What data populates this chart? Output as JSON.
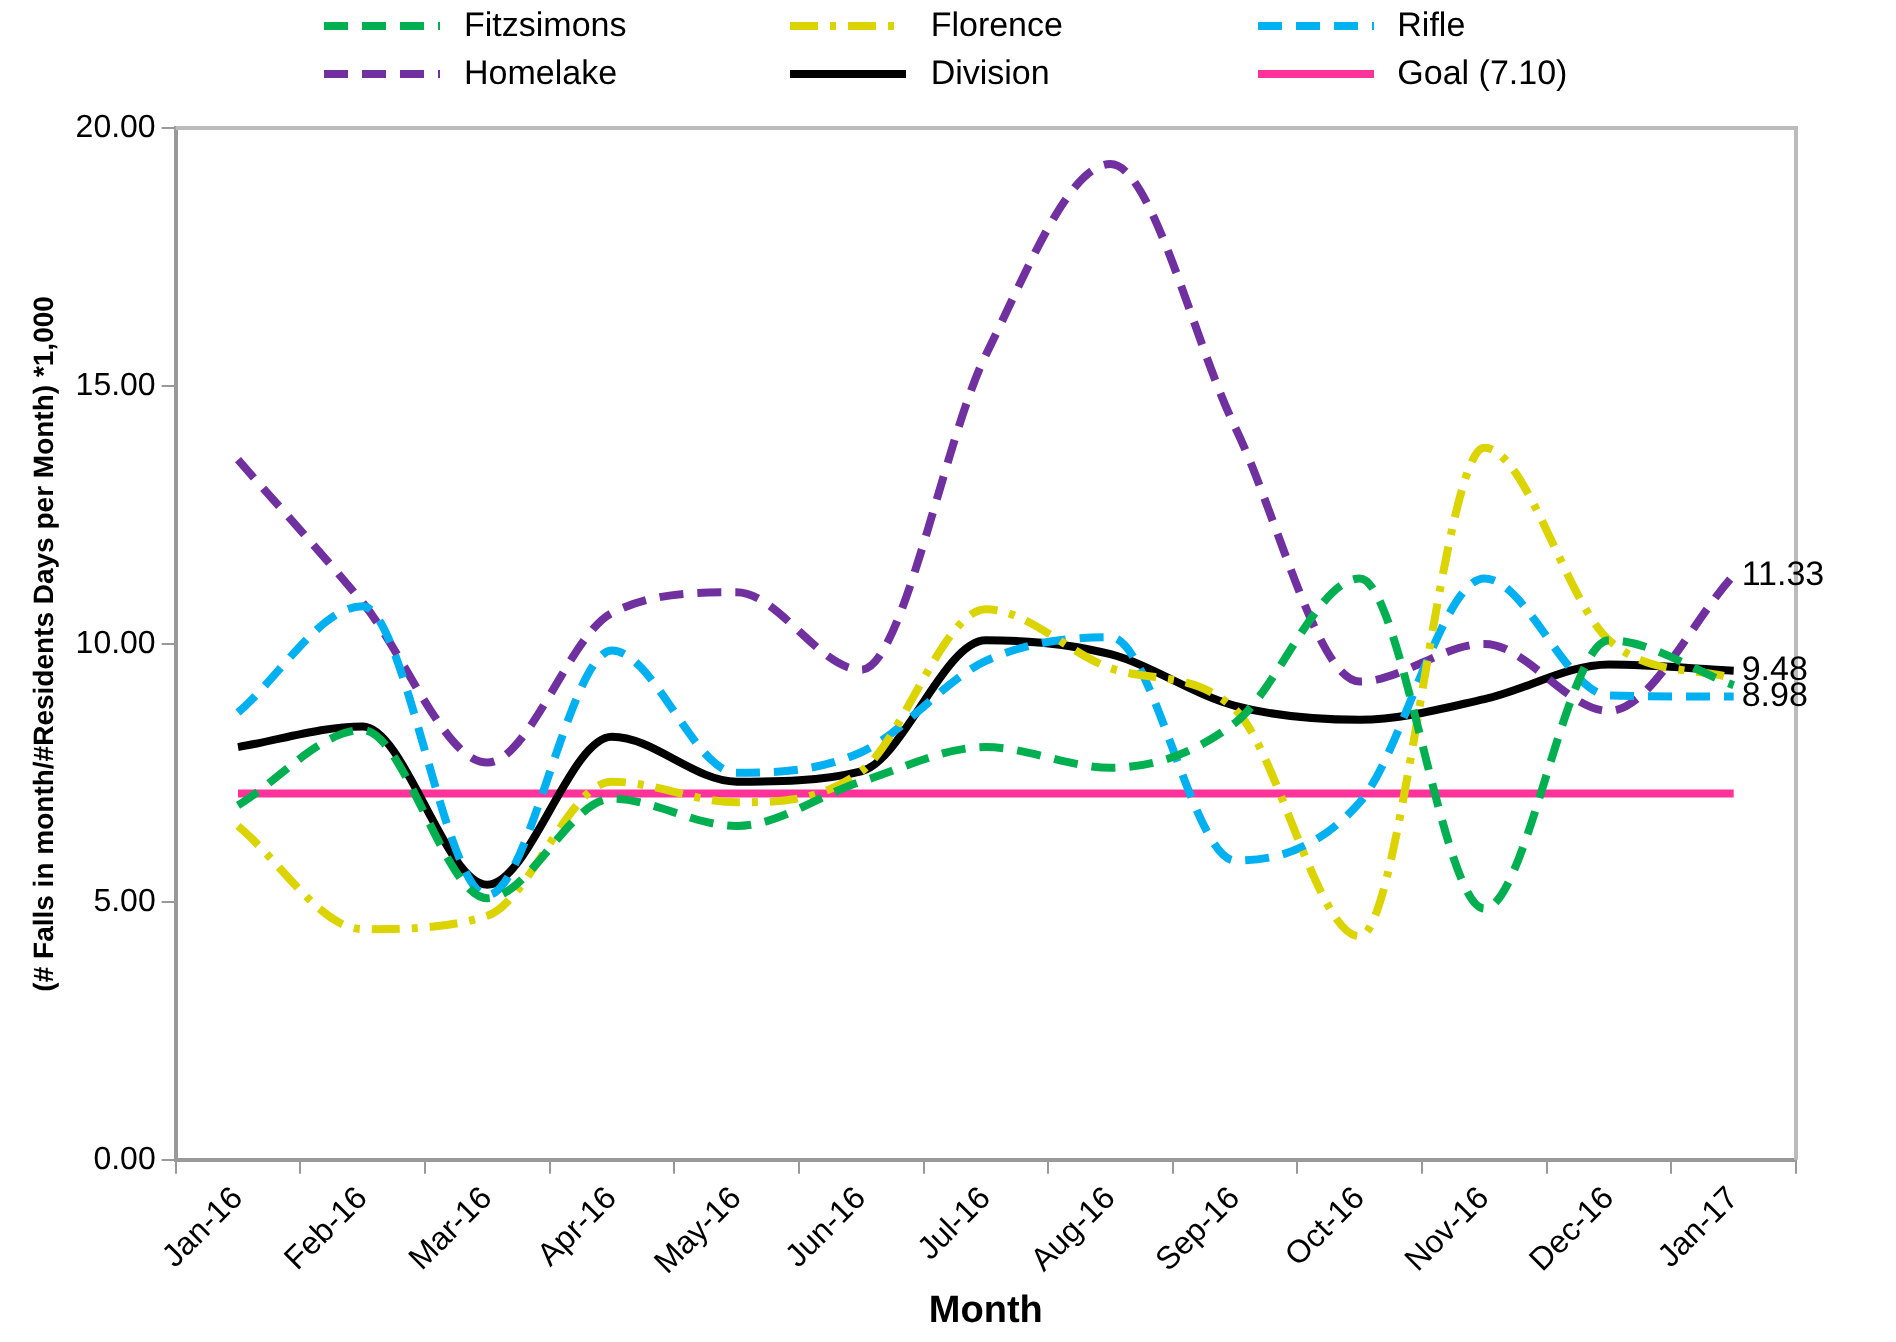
{
  "chart_data": {
    "type": "line",
    "xlabel": "Month",
    "ylabel": "(# Falls in month/#Residents Days per Month) *1,000",
    "categories": [
      "Jan-16",
      "Feb-16",
      "Mar-16",
      "Apr-16",
      "May-16",
      "Jun-16",
      "Jul-16",
      "Aug-16",
      "Sep-16",
      "Oct-16",
      "Nov-16",
      "Dec-16",
      "Jan-17"
    ],
    "series": [
      {
        "name": "Fitzsimons",
        "color": "#00b050",
        "line_style": "dashed",
        "values": [
          6.87,
          8.33,
          5.07,
          7.0,
          6.47,
          7.33,
          8.0,
          7.6,
          8.47,
          11.27,
          4.87,
          10.07,
          9.2
        ]
      },
      {
        "name": "Florence",
        "color": "#dcd400",
        "line_style": "dashdot",
        "values": [
          6.47,
          4.47,
          4.73,
          7.33,
          6.93,
          7.53,
          10.67,
          9.53,
          8.73,
          4.33,
          13.8,
          10.07,
          9.33
        ]
      },
      {
        "name": "Rifle",
        "color": "#00b0f0",
        "line_style": "dashed",
        "values": [
          8.67,
          10.73,
          5.13,
          9.87,
          7.5,
          7.9,
          9.67,
          10.13,
          5.8,
          6.93,
          11.27,
          9.0,
          8.98
        ],
        "value_labels": [
          null,
          null,
          null,
          null,
          null,
          null,
          null,
          null,
          null,
          null,
          null,
          null,
          "8.98"
        ]
      },
      {
        "name": "Homelake",
        "color": "#7030a0",
        "line_style": "dashed",
        "values": [
          13.57,
          10.8,
          7.7,
          10.6,
          11.0,
          9.5,
          15.6,
          19.3,
          14.2,
          9.27,
          10.0,
          8.7,
          11.33
        ],
        "value_labels": [
          null,
          null,
          null,
          null,
          null,
          null,
          null,
          null,
          null,
          null,
          null,
          null,
          "11.33"
        ]
      },
      {
        "name": "Division",
        "color": "#000000",
        "line_style": "solid",
        "values": [
          8.0,
          8.4,
          5.33,
          8.2,
          7.33,
          7.53,
          10.07,
          9.8,
          8.8,
          8.53,
          8.93,
          9.6,
          9.48
        ],
        "value_labels": [
          null,
          null,
          null,
          null,
          null,
          null,
          null,
          null,
          null,
          null,
          null,
          null,
          "9.48"
        ]
      },
      {
        "name": "Goal (7.10)",
        "color": "#ff3399",
        "line_style": "solid",
        "values": [
          7.1,
          7.1,
          7.1,
          7.1,
          7.1,
          7.1,
          7.1,
          7.1,
          7.1,
          7.1,
          7.1,
          7.1,
          7.1
        ]
      }
    ],
    "ylim": [
      0,
      20
    ],
    "yticks": [
      {
        "value": 0,
        "label": "0.00"
      },
      {
        "value": 5,
        "label": "5.00"
      },
      {
        "value": 10,
        "label": "10.00"
      },
      {
        "value": 15,
        "label": "15.00"
      },
      {
        "value": 20,
        "label": "20.00"
      }
    ],
    "grid": false,
    "legend": "top",
    "marker": "none"
  }
}
